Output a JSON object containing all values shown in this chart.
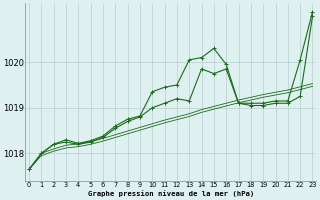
{
  "x": [
    0,
    1,
    2,
    3,
    4,
    5,
    6,
    7,
    8,
    9,
    10,
    11,
    12,
    13,
    14,
    15,
    16,
    17,
    18,
    19,
    20,
    21,
    22,
    23
  ],
  "line_main": [
    1017.65,
    1018.0,
    1018.2,
    1018.3,
    1018.22,
    1018.28,
    1018.38,
    1018.6,
    1018.75,
    1018.82,
    1019.35,
    1019.45,
    1019.5,
    1020.05,
    1020.1,
    1020.3,
    1019.95,
    1019.1,
    1019.1,
    1019.1,
    1019.15,
    1019.15,
    1020.05,
    1021.1
  ],
  "line_secondary": [
    1017.65,
    1018.0,
    1018.2,
    1018.25,
    1018.2,
    1018.25,
    1018.35,
    1018.55,
    1018.7,
    1018.8,
    1019.0,
    1019.1,
    1019.2,
    1019.15,
    1019.85,
    1019.75,
    1019.85,
    1019.1,
    1019.05,
    1019.05,
    1019.1,
    1019.1,
    1019.25,
    1021.0
  ],
  "line_band1": [
    1017.65,
    1017.95,
    1018.05,
    1018.12,
    1018.15,
    1018.2,
    1018.27,
    1018.35,
    1018.43,
    1018.51,
    1018.59,
    1018.67,
    1018.74,
    1018.81,
    1018.9,
    1018.97,
    1019.04,
    1019.11,
    1019.17,
    1019.23,
    1019.28,
    1019.33,
    1019.4,
    1019.47
  ],
  "line_band2": [
    1017.65,
    1018.0,
    1018.1,
    1018.18,
    1018.21,
    1018.26,
    1018.33,
    1018.41,
    1018.49,
    1018.57,
    1018.65,
    1018.73,
    1018.8,
    1018.87,
    1018.96,
    1019.03,
    1019.1,
    1019.17,
    1019.23,
    1019.29,
    1019.34,
    1019.39,
    1019.46,
    1019.53
  ],
  "bg_color": "#dff0f0",
  "grid_color": "#b8d0d0",
  "line_color": "#1a6b1a",
  "title": "Graphe pression niveau de la mer (hPa)",
  "ylabel_ticks": [
    1018,
    1019,
    1020
  ],
  "xlim": [
    -0.3,
    23.3
  ],
  "ylim": [
    1017.4,
    1021.3
  ]
}
